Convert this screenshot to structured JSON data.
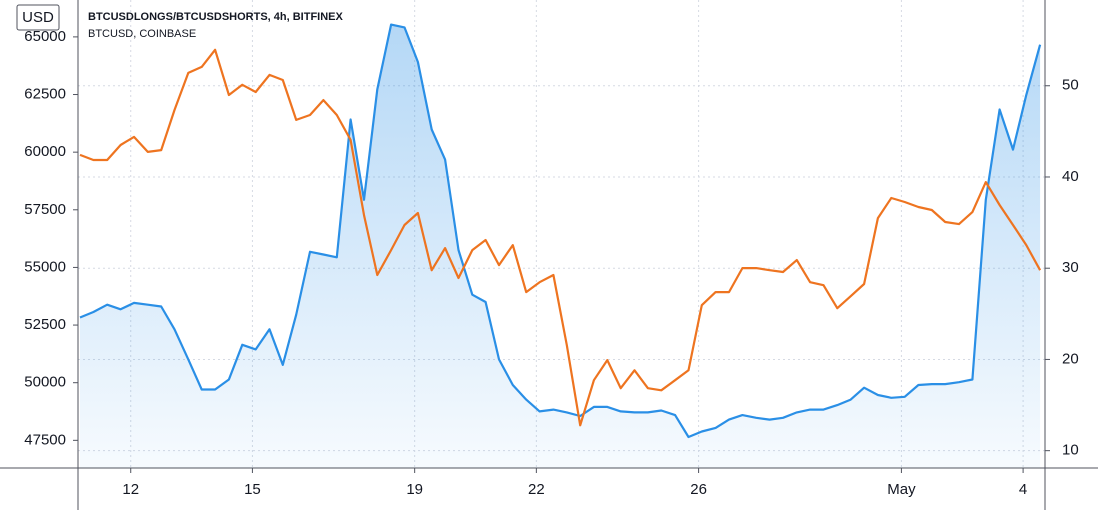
{
  "chart_data": {
    "type": "line",
    "y_unit": "USD",
    "x": [
      10.75,
      11.08,
      11.42,
      11.75,
      12.08,
      12.42,
      12.75,
      13.08,
      13.42,
      13.75,
      14.08,
      14.42,
      14.75,
      15.08,
      15.42,
      15.75,
      16.08,
      16.42,
      16.75,
      17.08,
      17.42,
      17.75,
      18.08,
      18.42,
      18.75,
      19.08,
      19.42,
      19.75,
      20.08,
      20.42,
      20.75,
      21.08,
      21.42,
      21.75,
      22.08,
      22.42,
      22.75,
      23.08,
      23.42,
      23.75,
      24.08,
      24.42,
      24.75,
      25.08,
      25.42,
      25.75,
      26.08,
      26.42,
      26.75,
      27.08,
      27.42,
      27.75,
      28.08,
      28.42,
      28.75,
      29.08,
      29.42,
      29.75,
      30.08,
      30.42,
      30.75,
      31.08,
      31.42,
      31.75,
      32.08,
      32.42,
      32.75,
      33.08,
      33.42,
      33.75,
      34.08,
      34.42
    ],
    "xlim": [
      10.7,
      34.54
    ],
    "xticks": [
      12,
      15,
      19,
      22,
      26,
      {
        "value": 31,
        "label": "May"
      },
      {
        "value": 34,
        "label": "4"
      }
    ],
    "ylim": [
      46300,
      66600
    ],
    "yticks": [
      47500,
      50000,
      52500,
      55000,
      57500,
      60000,
      62500,
      65000
    ],
    "y2lim": [
      8.1,
      59.4
    ],
    "y2ticks": [
      10,
      20,
      30,
      40,
      50
    ],
    "grid": true,
    "legend": "top-left",
    "series": [
      {
        "name": "BTCUSDLONGS/BTCUSDSHORTS, 4h, BITFINEX",
        "color": "#2a8fe6",
        "axis": "y2",
        "area": true,
        "values": [
          24.6,
          25.2,
          26.0,
          25.5,
          26.2,
          26.0,
          25.8,
          23.3,
          20.0,
          16.7,
          16.7,
          17.8,
          21.6,
          21.1,
          23.3,
          19.4,
          24.9,
          31.8,
          31.5,
          31.2,
          46.3,
          37.5,
          49.6,
          56.7,
          56.4,
          52.6,
          45.2,
          41.9,
          32.0,
          27.1,
          26.3,
          20.0,
          17.2,
          15.6,
          14.3,
          14.5,
          14.2,
          13.8,
          14.8,
          14.8,
          14.3,
          14.2,
          14.2,
          14.4,
          13.9,
          11.5,
          12.1,
          12.5,
          13.4,
          13.9,
          13.6,
          13.4,
          13.6,
          14.2,
          14.5,
          14.5,
          15.0,
          15.6,
          16.9,
          16.1,
          15.8,
          15.9,
          17.2,
          17.3,
          17.3,
          17.5,
          17.8,
          37.5,
          47.4,
          43.0,
          49.0,
          54.5
        ]
      },
      {
        "name": "BTCUSD, COINBASE",
        "color": "#ee7420",
        "values": [
          59880,
          59660,
          59660,
          60310,
          60660,
          60010,
          60090,
          61830,
          63440,
          63700,
          64440,
          62480,
          62920,
          62610,
          63350,
          63130,
          61400,
          61610,
          62260,
          61610,
          60530,
          57270,
          54670,
          55750,
          56840,
          57360,
          54880,
          55840,
          54540,
          55750,
          56190,
          55100,
          55970,
          53930,
          54360,
          54670,
          51630,
          48150,
          50110,
          50980,
          49760,
          50540,
          49760,
          49670,
          50110,
          50540,
          53360,
          53930,
          53930,
          54970,
          54970,
          54880,
          54800,
          55320,
          54360,
          54230,
          53230,
          53750,
          54280,
          57140,
          58010,
          57840,
          57620,
          57490,
          56970,
          56880,
          57400,
          58700,
          57710,
          56840,
          55970,
          54880
        ]
      }
    ]
  }
}
